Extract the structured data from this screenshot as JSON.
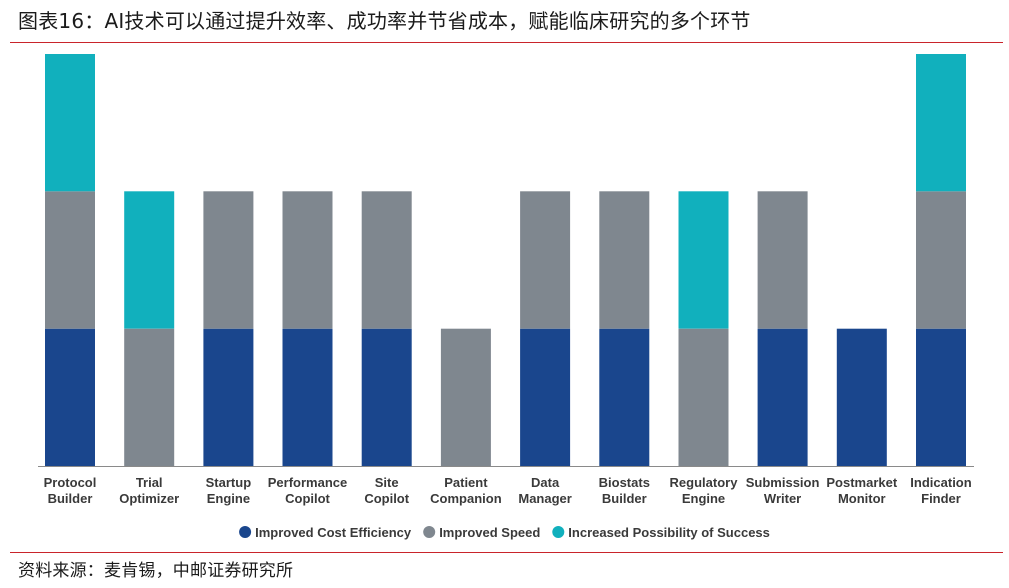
{
  "header": {
    "title": "图表16：AI技术可以通过提升效率、成功率并节省成本，赋能临床研究的多个环节"
  },
  "footer": {
    "source": "资料来源：麦肯锡，中邮证券研究所"
  },
  "colors": {
    "rule": "#c9242b",
    "axis": "#8a8a8a"
  },
  "chart_data": {
    "type": "bar",
    "stacked": true,
    "categories": [
      [
        "Protocol",
        "Builder"
      ],
      [
        "Trial",
        "Optimizer"
      ],
      [
        "Startup",
        "Engine"
      ],
      [
        "Performance",
        "Copilot"
      ],
      [
        "Site",
        "Copilot"
      ],
      [
        "Patient",
        "Companion"
      ],
      [
        "Data",
        "Manager"
      ],
      [
        "Biostats",
        "Builder"
      ],
      [
        "Regulatory",
        "Engine"
      ],
      [
        "Submission",
        "Writer"
      ],
      [
        "Postmarket",
        "Monitor"
      ],
      [
        "Indication",
        "Finder"
      ]
    ],
    "series": [
      {
        "name": "Improved Cost Efficiency",
        "color": "#1a468d",
        "values": [
          1,
          0,
          1,
          1,
          1,
          0,
          1,
          1,
          0,
          1,
          1,
          1
        ]
      },
      {
        "name": "Improved Speed",
        "color": "#7f878f",
        "values": [
          1,
          1,
          1,
          1,
          1,
          1,
          1,
          1,
          1,
          1,
          0,
          1
        ]
      },
      {
        "name": "Increased Possibility of Success",
        "color": "#11b0bd",
        "values": [
          1,
          1,
          0,
          0,
          0,
          0,
          0,
          0,
          1,
          0,
          0,
          1
        ]
      }
    ],
    "legend": "bottom-center",
    "grid": false
  }
}
